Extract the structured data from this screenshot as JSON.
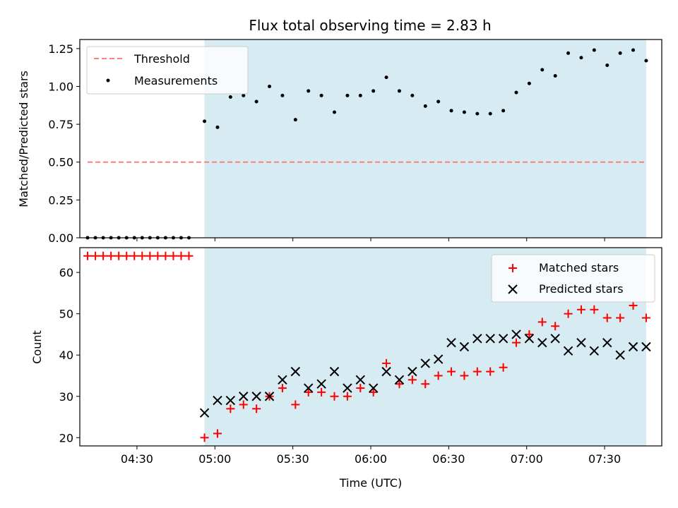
{
  "title": "Flux total observing time = 2.83 h",
  "colors": {
    "span": "#add8e6",
    "threshold": "#ff7f7f",
    "measurement": "#000000",
    "matched": "#ff0000",
    "predicted": "#000000"
  },
  "chart_data": [
    {
      "type": "scatter",
      "ylabel": "Matched/Predicted stars",
      "xlabel": "",
      "ylim": [
        0,
        1.31
      ],
      "xlim": [
        "04:08",
        "07:52"
      ],
      "yticks": [
        0.0,
        0.25,
        0.5,
        0.75,
        1.0,
        1.25
      ],
      "ytick_labels": [
        "0.00",
        "0.25",
        "0.50",
        "0.75",
        "1.00",
        "1.25"
      ],
      "shaded_span": [
        "04:56",
        "07:46"
      ],
      "legend": {
        "position": "top-left",
        "entries": [
          "Threshold",
          "Measurements"
        ]
      },
      "threshold": {
        "name": "Threshold",
        "y": 0.5,
        "x": [
          "04:11",
          "07:46"
        ]
      },
      "series": [
        {
          "name": "Measurements",
          "x": [
            "04:11",
            "04:14",
            "04:17",
            "04:20",
            "04:23",
            "04:26",
            "04:29",
            "04:32",
            "04:35",
            "04:38",
            "04:41",
            "04:44",
            "04:47",
            "04:50",
            "04:56",
            "05:01",
            "05:06",
            "05:11",
            "05:16",
            "05:21",
            "05:26",
            "05:31",
            "05:36",
            "05:41",
            "05:46",
            "05:51",
            "05:56",
            "06:01",
            "06:06",
            "06:11",
            "06:16",
            "06:21",
            "06:26",
            "06:31",
            "06:36",
            "06:41",
            "06:46",
            "06:51",
            "06:56",
            "07:01",
            "07:06",
            "07:11",
            "07:16",
            "07:21",
            "07:26",
            "07:31",
            "07:36",
            "07:41",
            "07:46"
          ],
          "y": [
            0,
            0,
            0,
            0,
            0,
            0,
            0,
            0,
            0,
            0,
            0,
            0,
            0,
            0,
            0.77,
            0.73,
            0.93,
            0.94,
            0.9,
            1.0,
            0.94,
            0.78,
            0.97,
            0.94,
            0.83,
            0.94,
            0.94,
            0.97,
            1.06,
            0.97,
            0.94,
            0.87,
            0.9,
            0.84,
            0.83,
            0.82,
            0.82,
            0.84,
            0.96,
            1.02,
            1.11,
            1.07,
            1.22,
            1.19,
            1.24,
            1.14,
            1.22,
            1.24,
            1.17
          ]
        }
      ]
    },
    {
      "type": "scatter",
      "ylabel": "Count",
      "xlabel": "Time (UTC)",
      "ylim": [
        18,
        66
      ],
      "xlim": [
        "04:08",
        "07:52"
      ],
      "yticks": [
        20,
        30,
        40,
        50,
        60
      ],
      "ytick_labels": [
        "20",
        "30",
        "40",
        "50",
        "60"
      ],
      "xticks": [
        "04:30",
        "05:00",
        "05:30",
        "06:00",
        "06:30",
        "07:00",
        "07:30"
      ],
      "xtick_labels": [
        "04:30",
        "05:00",
        "05:30",
        "06:00",
        "06:30",
        "07:00",
        "07:30"
      ],
      "shaded_span": [
        "04:56",
        "07:46"
      ],
      "legend": {
        "position": "top-right",
        "entries": [
          "Matched stars",
          "Predicted stars"
        ]
      },
      "series": [
        {
          "name": "Matched stars",
          "marker": "+",
          "x": [
            "04:11",
            "04:14",
            "04:17",
            "04:20",
            "04:23",
            "04:26",
            "04:29",
            "04:32",
            "04:35",
            "04:38",
            "04:41",
            "04:44",
            "04:47",
            "04:50",
            "04:56",
            "05:01",
            "05:06",
            "05:11",
            "05:16",
            "05:21",
            "05:26",
            "05:31",
            "05:36",
            "05:41",
            "05:46",
            "05:51",
            "05:56",
            "06:01",
            "06:06",
            "06:11",
            "06:16",
            "06:21",
            "06:26",
            "06:31",
            "06:36",
            "06:41",
            "06:46",
            "06:51",
            "06:56",
            "07:01",
            "07:06",
            "07:11",
            "07:16",
            "07:21",
            "07:26",
            "07:31",
            "07:36",
            "07:41",
            "07:46"
          ],
          "y": [
            64,
            64,
            64,
            64,
            64,
            64,
            64,
            64,
            64,
            64,
            64,
            64,
            64,
            64,
            20,
            21,
            27,
            28,
            27,
            30,
            32,
            28,
            31,
            31,
            30,
            30,
            32,
            31,
            38,
            33,
            34,
            33,
            35,
            36,
            35,
            36,
            36,
            37,
            43,
            45,
            48,
            47,
            50,
            51,
            51,
            49,
            49,
            52,
            49
          ]
        },
        {
          "name": "Predicted stars",
          "marker": "x",
          "x": [
            "04:56",
            "05:01",
            "05:06",
            "05:11",
            "05:16",
            "05:21",
            "05:26",
            "05:31",
            "05:36",
            "05:41",
            "05:46",
            "05:51",
            "05:56",
            "06:01",
            "06:06",
            "06:11",
            "06:16",
            "06:21",
            "06:26",
            "06:31",
            "06:36",
            "06:41",
            "06:46",
            "06:51",
            "06:56",
            "07:01",
            "07:06",
            "07:11",
            "07:16",
            "07:21",
            "07:26",
            "07:31",
            "07:36",
            "07:41",
            "07:46"
          ],
          "y": [
            26,
            29,
            29,
            30,
            30,
            30,
            34,
            36,
            32,
            33,
            36,
            32,
            34,
            32,
            36,
            34,
            36,
            38,
            39,
            43,
            42,
            44,
            44,
            44,
            45,
            44,
            43,
            44,
            41,
            43,
            41,
            43,
            40,
            42,
            42
          ]
        }
      ]
    }
  ]
}
